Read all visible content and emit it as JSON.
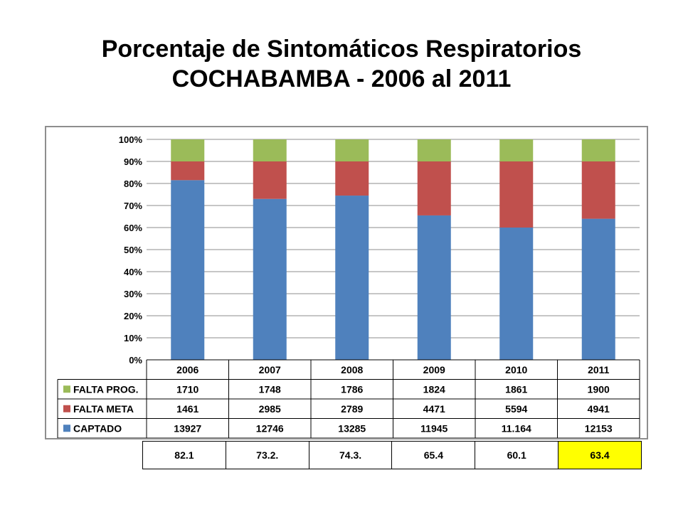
{
  "title": {
    "line1": "Porcentaje de Sintomáticos Respiratorios",
    "line2": "COCHABAMBA - 2006 al 2011"
  },
  "chart_data": {
    "type": "bar",
    "stacked": true,
    "categories": [
      "2006",
      "2007",
      "2008",
      "2009",
      "2010",
      "2011"
    ],
    "y_ticks": [
      "0%",
      "10%",
      "20%",
      "30%",
      "40%",
      "50%",
      "60%",
      "70%",
      "80%",
      "90%",
      "100%"
    ],
    "ylim": [
      0,
      100
    ],
    "grid": true,
    "colors": {
      "captado": "#4f81bd",
      "falta_meta": "#c0504d",
      "falta_prog": "#9bbb59"
    },
    "series": [
      {
        "name": "CAPTADO",
        "color": "#4f81bd",
        "percent": [
          81.5,
          73,
          74.5,
          65.5,
          60,
          64
        ],
        "table_values": [
          "13927",
          "12746",
          "13285",
          "11945",
          "11.164",
          "12153"
        ]
      },
      {
        "name": "FALTA META",
        "color": "#c0504d",
        "percent": [
          8.5,
          17,
          15.5,
          24.5,
          30,
          26
        ],
        "table_values": [
          "1461",
          "2985",
          "2789",
          "4471",
          "5594",
          "4941"
        ]
      },
      {
        "name": "FALTA PROG.",
        "color": "#9bbb59",
        "percent": [
          10,
          10,
          10,
          10,
          10,
          10
        ],
        "table_values": [
          "1710",
          "1748",
          "1786",
          "1824",
          "1861",
          "1900"
        ]
      }
    ],
    "table_row_order": [
      "FALTA PROG.",
      "FALTA META",
      "CAPTADO"
    ]
  },
  "percent_row": {
    "values": [
      "82.1",
      "73.2.",
      "74.3.",
      "65.4",
      "60.1",
      "63.4"
    ],
    "highlight_color": "#ffff00",
    "highlight_index": 5
  }
}
